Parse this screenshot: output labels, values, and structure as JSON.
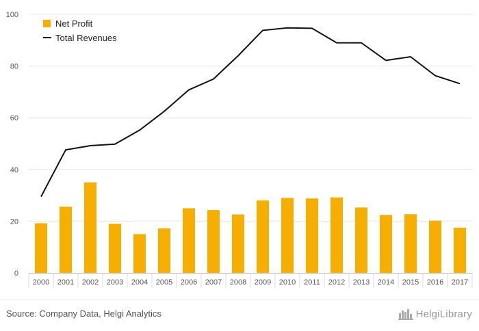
{
  "chart_data": {
    "type": "bar+line",
    "categories": [
      "2000",
      "2001",
      "2002",
      "2003",
      "2004",
      "2005",
      "2006",
      "2007",
      "2008",
      "2009",
      "2010",
      "2011",
      "2012",
      "2013",
      "2014",
      "2015",
      "2016",
      "2017"
    ],
    "series": [
      {
        "name": "Net Profit",
        "type": "bar",
        "color": "#f6ae00",
        "values": [
          19.2,
          25.6,
          35.0,
          19.0,
          15.0,
          17.2,
          25.0,
          24.3,
          22.6,
          28.0,
          29.0,
          28.8,
          29.2,
          25.3,
          22.4,
          22.7,
          20.2,
          17.5
        ]
      },
      {
        "name": "Total Revenues",
        "type": "line",
        "color": "#111111",
        "values": [
          29.5,
          47.6,
          49.2,
          49.8,
          55.2,
          62.5,
          70.8,
          75.0,
          84.0,
          93.8,
          94.8,
          94.6,
          89.0,
          89.0,
          82.2,
          83.6,
          76.3,
          73.2
        ]
      }
    ],
    "ylim": [
      0,
      100
    ],
    "yticks": [
      0,
      20,
      40,
      60,
      80,
      100
    ],
    "grid": true,
    "legend_position": "top-left"
  },
  "footer": {
    "source": "Source: Company Data, Helgi Analytics",
    "brand": "HelgiLibrary"
  }
}
